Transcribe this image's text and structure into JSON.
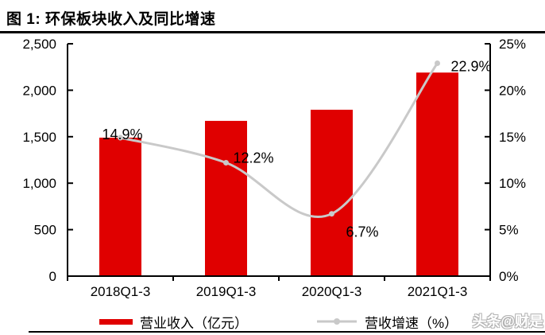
{
  "figure": {
    "title": "图 1: 环保板块收入及同比增速",
    "watermark": "头条@财是"
  },
  "chart_data": {
    "type": "bar",
    "subtype": "combo-bar-line",
    "title": "图 1: 环保板块收入及同比增速",
    "categories": [
      "2018Q1-3",
      "2019Q1-3",
      "2020Q1-3",
      "2021Q1-3"
    ],
    "series": [
      {
        "name": "营业收入（亿元）",
        "type": "bar",
        "axis": "left",
        "color": "#E00000",
        "values": [
          1490,
          1670,
          1790,
          2190
        ]
      },
      {
        "name": "营收增速（%）",
        "type": "line",
        "axis": "right",
        "color": "#C9C9C9",
        "values": [
          14.9,
          12.2,
          6.7,
          22.9
        ],
        "point_labels": [
          "14.9%",
          "12.2%",
          "6.7%",
          "22.9%"
        ]
      }
    ],
    "left_axis": {
      "min": 0,
      "max": 2500,
      "step": 500,
      "tick_labels": [
        "2,500",
        "2,000",
        "1,500",
        "1,000",
        "500",
        "0"
      ]
    },
    "right_axis": {
      "min": 0,
      "max": 25,
      "step": 5,
      "tick_labels": [
        "25%",
        "20%",
        "15%",
        "10%",
        "5%",
        "0%"
      ]
    },
    "grid": false,
    "legend_position": "bottom",
    "axis_color": "#000000",
    "label_color": "#000000"
  }
}
